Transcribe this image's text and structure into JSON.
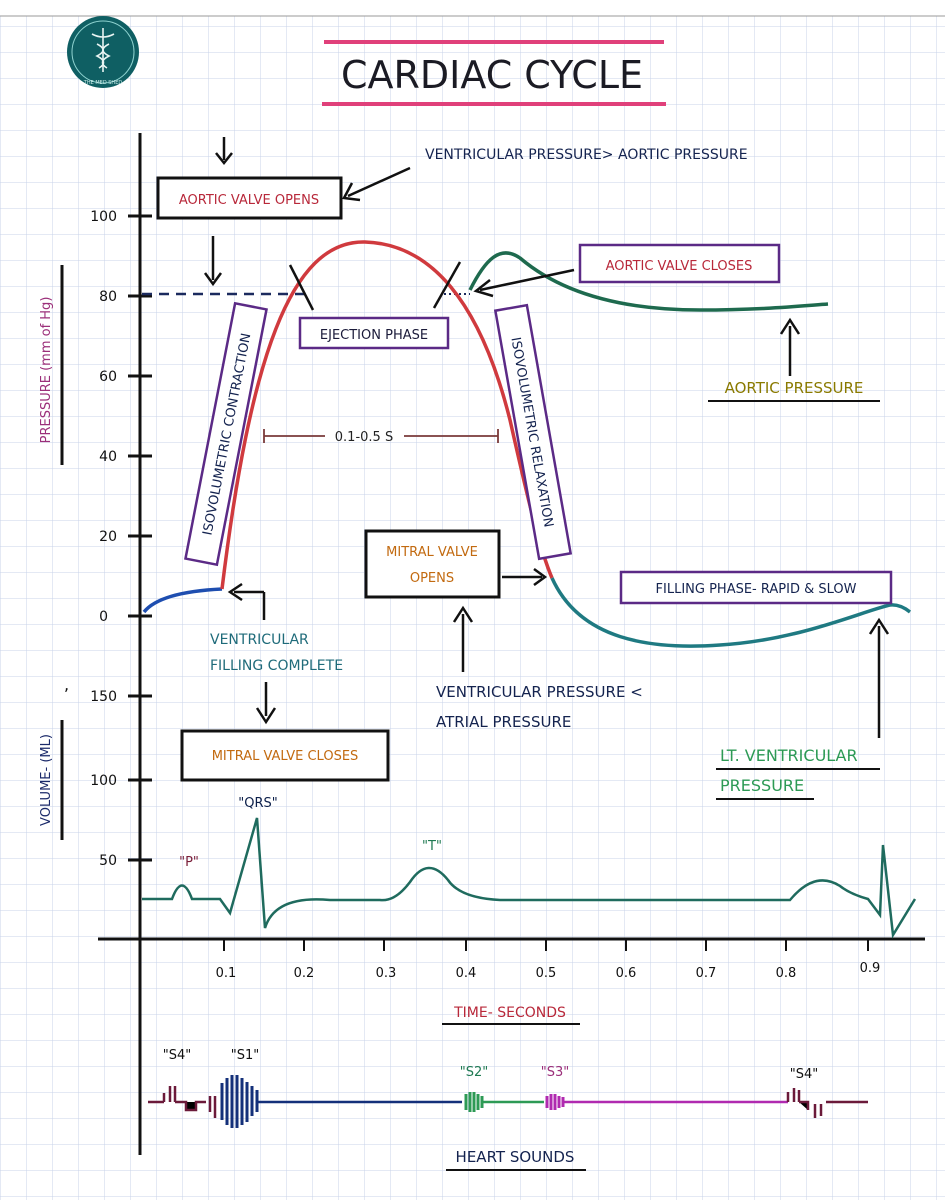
{
  "title": "CARDIAC CYCLE",
  "logo": {
    "text": "THE MED SHED",
    "icon": "caduceus-icon"
  },
  "axes": {
    "pressure_label": "PRESSURE (mm of Hg)",
    "volume_label": "VOLUME- (ML)",
    "time_label": "TIME- SECONDS",
    "pressure_ticks": [
      "100",
      "80",
      "60",
      "40",
      "20",
      "0"
    ],
    "volume_ticks": [
      "150",
      "100",
      "50"
    ],
    "time_ticks": [
      "0.1",
      "0.2",
      "0.3",
      "0.4",
      "0.5",
      "0.6",
      "0.7",
      "0.8",
      "0.9"
    ]
  },
  "labels": {
    "aortic_valve_opens": "AORTIC VALVE OPENS",
    "vent_gt_aortic": "VENTRICULAR PRESSURE> AORTIC PRESSURE",
    "aortic_valve_closes": "AORTIC VALVE CLOSES",
    "ejection_phase": "EJECTION PHASE",
    "iso_contraction": "ISOVOLUMETRIC CONTRACTION",
    "iso_relaxation": "ISOVOLUMETRIC RELAXATION",
    "interval": "0.1-0.5 S",
    "aortic_pressure": "AORTIC PRESSURE",
    "mitral_opens_1": "MITRAL VALVE",
    "mitral_opens_2": "OPENS",
    "filling_phase": "FILLING PHASE- RAPID & SLOW",
    "vent_filling_1": "VENTRICULAR",
    "vent_filling_2": "FILLING COMPLETE",
    "vent_lt_atrial_1": "VENTRICULAR PRESSURE <",
    "vent_lt_atrial_2": "ATRIAL PRESSURE",
    "mitral_closes": "MITRAL VALVE CLOSES",
    "lt_vent_1": "LT. VENTRICULAR",
    "lt_vent_2": "PRESSURE",
    "qrs": "\"QRS\"",
    "p": "\"P\"",
    "t": "\"T\"",
    "heart_sounds": "HEART SOUNDS",
    "s4a": "\"S4\"",
    "s1": "\"S1\"",
    "s2": "\"S2\"",
    "s3": "\"S3\"",
    "s4b": "\"S4\""
  },
  "colors": {
    "ventricular_pressure": "#d03a3e",
    "aortic_pressure": "#1e6a4e",
    "filling": "#1f7a82",
    "ecg": "#1f6b5e",
    "box_purple": "#5b2a86",
    "box_red_text": "#b8283a",
    "title_underline": "#e0407a",
    "orange_text": "#c26a10",
    "navy": "#14234f",
    "grid": "#c9d3ea"
  }
}
